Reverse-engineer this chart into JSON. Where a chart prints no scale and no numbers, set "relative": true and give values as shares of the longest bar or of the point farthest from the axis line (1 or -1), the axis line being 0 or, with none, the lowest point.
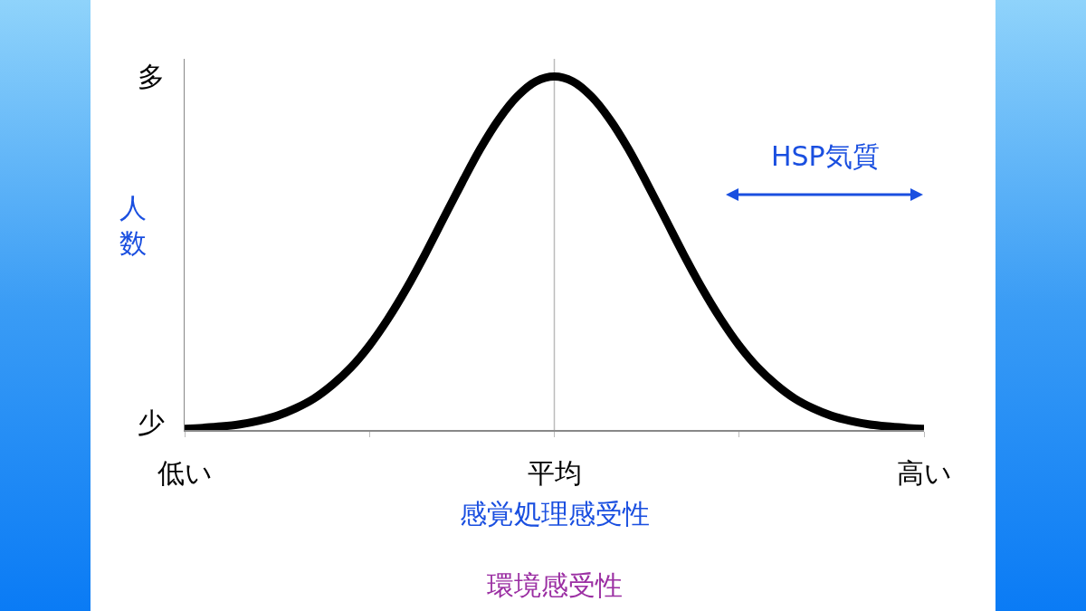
{
  "chart_data": {
    "type": "line",
    "relative": true,
    "xlabel": "感覚処理感受性",
    "ylabel": "人数",
    "annotations": [
      "多",
      "少",
      "HSP気質",
      "環境感受性"
    ],
    "categories": [
      "低い",
      null,
      null,
      null,
      null,
      null,
      null,
      null,
      null,
      null,
      null,
      null,
      null,
      null,
      null,
      null,
      null,
      null,
      null,
      null,
      "平均",
      null,
      null,
      null,
      null,
      null,
      null,
      null,
      null,
      null,
      null,
      null,
      null,
      null,
      null,
      null,
      null,
      null,
      null,
      null,
      "高い"
    ],
    "series": [
      {
        "color": "#000000",
        "values": [
          0.003,
          0.006,
          0.01,
          0.016,
          0.026,
          0.04,
          0.061,
          0.089,
          0.128,
          0.177,
          0.239,
          0.314,
          0.4,
          0.496,
          0.598,
          0.699,
          0.796,
          0.879,
          0.944,
          0.986,
          1,
          0.986,
          0.944,
          0.879,
          0.796,
          0.699,
          0.598,
          0.496,
          0.4,
          0.314,
          0.239,
          0.177,
          0.128,
          0.089,
          0.061,
          0.04,
          0.026,
          0.016,
          0.01,
          0.006,
          0.003
        ]
      }
    ],
    "ref_lines": [
      {
        "axis": "x",
        "value": "平均",
        "color": "#bbbbbb"
      }
    ],
    "grid": false,
    "marker": "none",
    "line_style": "solid"
  }
}
